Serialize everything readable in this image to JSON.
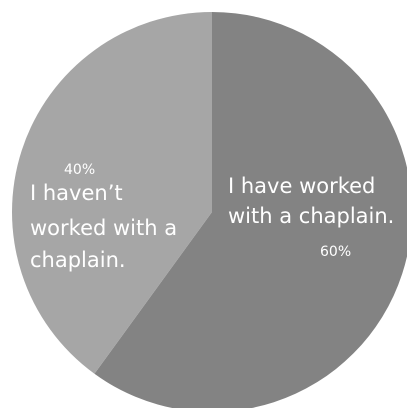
{
  "chart_data": {
    "type": "pie",
    "slices": [
      {
        "label": "I have worked with a chaplain.",
        "label_lines": [
          "I have worked",
          "with a chaplain."
        ],
        "value": 60,
        "value_label": "60%",
        "color": "#838383"
      },
      {
        "label": "I haven’t worked with a chaplain.",
        "label_lines": [
          "I haven’t",
          "worked with a",
          "chaplain."
        ],
        "value": 40,
        "value_label": "40%",
        "color": "#a6a6a6"
      }
    ],
    "start_angle_deg": 0,
    "direction": "clockwise",
    "title": "",
    "legend": "none"
  }
}
